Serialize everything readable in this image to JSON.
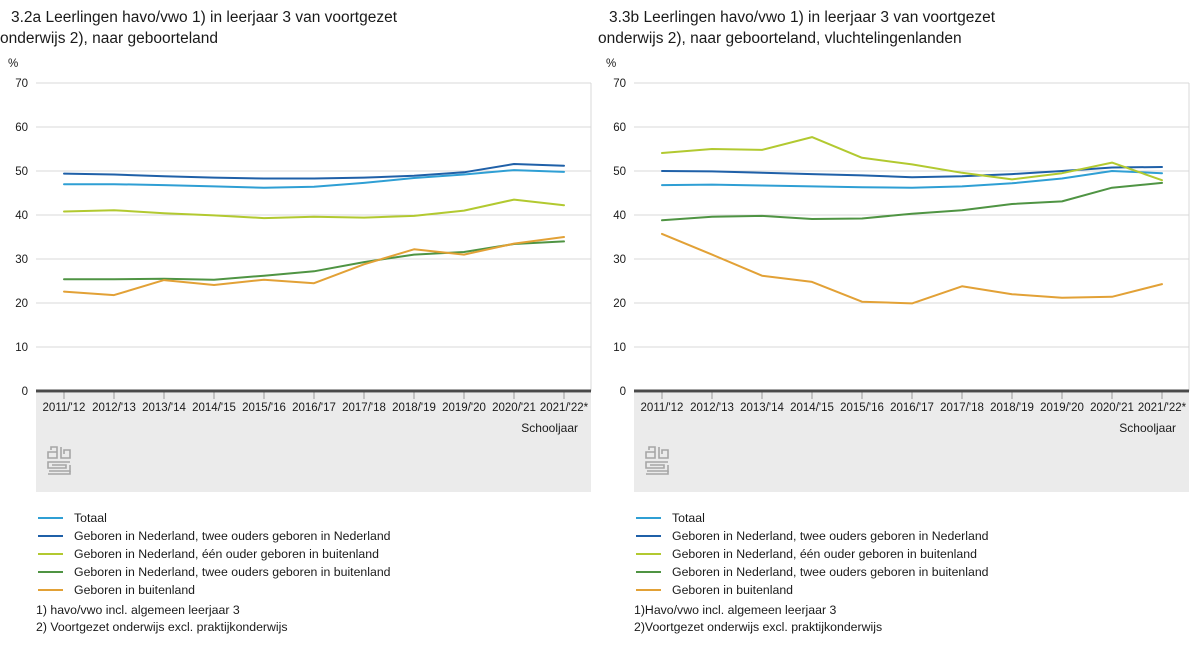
{
  "axis": {
    "unit_label": "%",
    "x_axis_label": "Schooljaar",
    "ylim": [
      0,
      70
    ],
    "ytick_step": 10,
    "grid_color": "#d9d9d9",
    "axis_line_color": "#4a4a4a",
    "tick_color": "#999999",
    "label_color": "#1a1a1a",
    "band_color": "#ebebeb"
  },
  "icons": {
    "cbs_logo_color": "#a6a6a6"
  },
  "chart_data": [
    {
      "type": "line",
      "id": "3.2a",
      "title": "3.2a Leerlingen havo/vwo 1) in leerjaar 3 van voortgezet onderwijs 2), naar geboorteland",
      "title_lines": [
        "3.2a Leerlingen havo/vwo 1) in leerjaar 3 van voortgezet",
        "onderwijs 2), naar geboorteland"
      ],
      "ylabel": "%",
      "xlabel": "Schooljaar",
      "ylim": [
        0,
        70
      ],
      "grid": true,
      "legend_position": "bottom",
      "categories": [
        "2011/'12",
        "2012/'13",
        "2013/'14",
        "2014/'15",
        "2015/'16",
        "2016/'17",
        "2017/'18",
        "2018/'19",
        "2019/'20",
        "2020/'21",
        "2021/'22*"
      ],
      "series": [
        {
          "name": "Totaal",
          "color": "#2f9fd4",
          "values": [
            47.0,
            47.0,
            46.8,
            46.5,
            46.2,
            46.4,
            47.3,
            48.4,
            49.2,
            50.2,
            49.8
          ]
        },
        {
          "name": "Geboren in Nederland, twee ouders geboren in Nederland",
          "color": "#1f60a8",
          "values": [
            49.4,
            49.2,
            48.8,
            48.5,
            48.3,
            48.3,
            48.5,
            48.9,
            49.7,
            51.6,
            51.2
          ]
        },
        {
          "name": "Geboren in Nederland, één ouder geboren in buitenland",
          "color": "#b2c930",
          "values": [
            40.8,
            41.1,
            40.4,
            39.9,
            39.3,
            39.6,
            39.4,
            39.8,
            41.0,
            43.5,
            42.2
          ]
        },
        {
          "name": "Geboren in Nederland, twee ouders geboren in buitenland",
          "color": "#4f9443",
          "values": [
            25.4,
            25.4,
            25.5,
            25.3,
            26.2,
            27.2,
            29.3,
            31.0,
            31.6,
            33.4,
            34.0
          ]
        },
        {
          "name": "Geboren in buitenland",
          "color": "#e2a136",
          "values": [
            22.6,
            21.8,
            25.2,
            24.1,
            25.3,
            24.5,
            28.8,
            32.2,
            31.0,
            33.5,
            35.0
          ]
        }
      ],
      "footnotes": [
        "1) havo/vwo incl. algemeen leerjaar 3",
        "2) Voortgezet onderwijs excl. praktijkonderwijs"
      ]
    },
    {
      "type": "line",
      "id": "3.3b",
      "title": "3.3b Leerlingen havo/vwo 1) in leerjaar 3 van voortgezet onderwijs 2), naar geboorteland, vluchtelingenlanden",
      "title_lines": [
        "3.3b Leerlingen havo/vwo 1) in leerjaar 3 van voortgezet",
        "onderwijs 2), naar geboorteland, vluchtelingenlanden"
      ],
      "ylabel": "%",
      "xlabel": "Schooljaar",
      "ylim": [
        0,
        70
      ],
      "grid": true,
      "legend_position": "bottom",
      "categories": [
        "2011/'12",
        "2012/'13",
        "2013/'14",
        "2014/'15",
        "2015/'16",
        "2016/'17",
        "2017/'18",
        "2018/'19",
        "2019/'20",
        "2020/'21",
        "2021/'22*"
      ],
      "series": [
        {
          "name": "Totaal",
          "color": "#2f9fd4",
          "values": [
            46.8,
            46.9,
            46.7,
            46.5,
            46.3,
            46.2,
            46.5,
            47.2,
            48.3,
            50.0,
            49.5
          ]
        },
        {
          "name": "Geboren in Nederland, twee ouders geboren in Nederland",
          "color": "#1f60a8",
          "values": [
            50.0,
            49.9,
            49.6,
            49.3,
            49.0,
            48.6,
            48.8,
            49.3,
            50.0,
            50.8,
            50.9
          ]
        },
        {
          "name": "Geboren in Nederland, één ouder geboren in buitenland",
          "color": "#b2c930",
          "values": [
            54.1,
            55.0,
            54.8,
            57.7,
            53.0,
            51.5,
            49.6,
            48.1,
            49.5,
            51.9,
            47.9
          ]
        },
        {
          "name": "Geboren in Nederland, twee ouders geboren in buitenland",
          "color": "#4f9443",
          "values": [
            38.8,
            39.6,
            39.8,
            39.1,
            39.2,
            40.3,
            41.1,
            42.5,
            43.1,
            46.2,
            47.3
          ]
        },
        {
          "name": "Geboren in buitenland",
          "color": "#e2a136",
          "values": [
            35.7,
            31.0,
            26.2,
            24.8,
            20.3,
            19.9,
            23.8,
            22.0,
            21.2,
            21.4,
            24.3
          ]
        }
      ],
      "footnotes": [
        "1)Havo/vwo incl. algemeen leerjaar 3",
        "2)Voortgezet onderwijs excl. praktijkonderwijs"
      ]
    }
  ]
}
